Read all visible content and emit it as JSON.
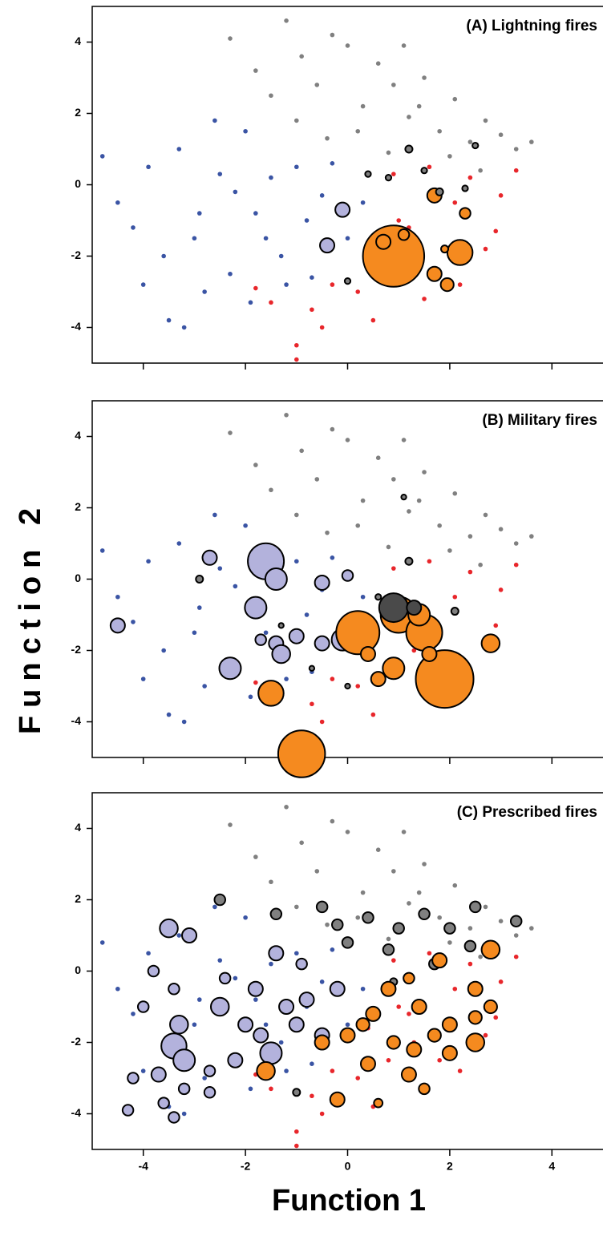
{
  "xlabel": "Function 1",
  "ylabel": "Function 2",
  "chart_data": [
    {
      "type": "scatter",
      "title": "(A) Lightning fires",
      "xlim": [
        -5,
        5
      ],
      "ylim": [
        -5,
        5
      ],
      "xticks": [
        -4,
        -2,
        0,
        2,
        4
      ],
      "yticks": [
        -4,
        -2,
        0,
        2,
        4
      ],
      "xticklabels": false,
      "series": [
        {
          "color": "#3a54a4",
          "x": [
            -4.8,
            -4.5,
            -4.2,
            -3.9,
            -3.6,
            -3.3,
            -3.0,
            -2.8,
            -2.5,
            -2.3,
            -2.0,
            -1.8,
            -1.5,
            -1.3,
            -1.0,
            -0.8,
            -0.5,
            -0.3,
            0.0,
            0.3,
            -3.5,
            -2.6,
            -1.9,
            -1.2,
            -0.7,
            -4.0,
            -2.2,
            -1.6,
            -3.2,
            -2.9
          ],
          "y": [
            0.8,
            -0.5,
            -1.2,
            0.5,
            -2.0,
            1.0,
            -1.5,
            -3.0,
            0.3,
            -2.5,
            1.5,
            -0.8,
            0.2,
            -2.0,
            0.5,
            -1.0,
            -0.3,
            0.6,
            -1.5,
            -0.5,
            -3.8,
            1.8,
            -3.3,
            -2.8,
            -2.6,
            -2.8,
            -0.2,
            -1.5,
            -4.0,
            -0.8
          ]
        },
        {
          "color": "#808080",
          "x": [
            -2.3,
            -1.8,
            -1.5,
            -1.2,
            -0.9,
            -0.6,
            -0.3,
            0.0,
            0.3,
            0.6,
            0.9,
            1.2,
            1.5,
            1.8,
            2.1,
            2.4,
            2.7,
            3.0,
            3.3,
            3.6,
            -1.0,
            0.2,
            0.8,
            1.4,
            2.0,
            2.6,
            -0.4,
            1.1
          ],
          "y": [
            4.1,
            3.2,
            2.5,
            4.6,
            3.6,
            2.8,
            4.2,
            3.9,
            2.2,
            3.4,
            2.8,
            1.9,
            3.0,
            1.5,
            2.4,
            1.2,
            1.8,
            1.4,
            1.0,
            1.2,
            1.8,
            1.5,
            0.9,
            2.2,
            0.8,
            0.4,
            1.3,
            3.9
          ]
        },
        {
          "color": "#e8262b",
          "x": [
            -1.8,
            -1.5,
            -1.0,
            -1.0,
            -0.7,
            -0.3,
            0.2,
            0.5,
            0.8,
            1.2,
            1.5,
            1.8,
            2.1,
            2.4,
            2.7,
            3.0,
            3.3,
            1.0,
            1.6,
            2.2,
            0.4,
            1.3,
            2.9,
            -0.5,
            0.9
          ],
          "y": [
            -2.9,
            -3.3,
            -4.5,
            -4.9,
            -3.5,
            -2.8,
            -3.0,
            -3.8,
            -2.5,
            -1.2,
            -3.2,
            -2.5,
            -0.5,
            0.2,
            -1.8,
            -0.3,
            0.4,
            -1.0,
            0.5,
            -2.8,
            -1.6,
            -2.0,
            -1.3,
            -4.0,
            0.3
          ]
        },
        {
          "color": "#b3b2dc",
          "edgecolor": "#000000",
          "x": [
            -0.1,
            -0.4
          ],
          "y": [
            -0.7,
            -1.7
          ],
          "sizes": [
            2,
            2
          ]
        },
        {
          "color": "#f58a1f",
          "edgecolor": "#000000",
          "x": [
            0.9,
            0.7,
            1.1,
            1.7,
            2.2,
            1.7,
            1.95,
            2.3,
            1.9
          ],
          "y": [
            -2.0,
            -1.6,
            -1.4,
            -0.3,
            -1.9,
            -2.5,
            -2.8,
            -0.8,
            -1.8
          ],
          "sizes": [
            8.5,
            2,
            1.5,
            2,
            3.5,
            2,
            1.8,
            1.5,
            1
          ]
        },
        {
          "color": "#808080",
          "edgecolor": "#000000",
          "x": [
            1.2,
            1.8,
            2.5,
            0.8,
            1.5,
            2.3,
            0.0,
            0.4
          ],
          "y": [
            1.0,
            -0.2,
            1.1,
            0.2,
            0.4,
            -0.1,
            -2.7,
            0.3
          ],
          "sizes": [
            1,
            1,
            0.8,
            0.8,
            0.8,
            0.8,
            0.8,
            0.8
          ]
        }
      ]
    },
    {
      "type": "scatter",
      "title": "(B) Military fires",
      "xlim": [
        -5,
        5
      ],
      "ylim": [
        -5,
        5
      ],
      "xticks": [
        -4,
        -2,
        0,
        2,
        4
      ],
      "yticks": [
        -4,
        -2,
        0,
        2,
        4
      ],
      "xticklabels": false,
      "series": [
        {
          "color": "#3a54a4",
          "x": [
            -4.8,
            -4.5,
            -4.2,
            -3.9,
            -3.6,
            -3.3,
            -3.0,
            -2.8,
            -2.5,
            -2.3,
            -2.0,
            -1.8,
            -1.5,
            -1.3,
            -1.0,
            -0.8,
            -0.5,
            -0.3,
            0.0,
            0.3,
            -3.5,
            -2.6,
            -1.9,
            -1.2,
            -0.7,
            -4.0,
            -2.2,
            -1.6,
            -3.2,
            -2.9
          ],
          "y": [
            0.8,
            -0.5,
            -1.2,
            0.5,
            -2.0,
            1.0,
            -1.5,
            -3.0,
            0.3,
            -2.5,
            1.5,
            -0.8,
            0.2,
            -2.0,
            0.5,
            -1.0,
            -0.3,
            0.6,
            -1.5,
            -0.5,
            -3.8,
            1.8,
            -3.3,
            -2.8,
            -2.6,
            -2.8,
            -0.2,
            -1.5,
            -4.0,
            -0.8
          ]
        },
        {
          "color": "#808080",
          "x": [
            -2.3,
            -1.8,
            -1.5,
            -1.2,
            -0.9,
            -0.6,
            -0.3,
            0.0,
            0.3,
            0.6,
            0.9,
            1.2,
            1.5,
            1.8,
            2.1,
            2.4,
            2.7,
            3.0,
            3.3,
            3.6,
            -1.0,
            0.2,
            0.8,
            1.4,
            2.0,
            2.6,
            -0.4,
            1.1
          ],
          "y": [
            4.1,
            3.2,
            2.5,
            4.6,
            3.6,
            2.8,
            4.2,
            3.9,
            2.2,
            3.4,
            2.8,
            1.9,
            3.0,
            1.5,
            2.4,
            1.2,
            1.8,
            1.4,
            1.0,
            1.2,
            1.8,
            1.5,
            0.9,
            2.2,
            0.8,
            0.4,
            1.3,
            3.9
          ]
        },
        {
          "color": "#e8262b",
          "x": [
            -1.8,
            -1.5,
            -1.0,
            -1.0,
            -0.7,
            -0.3,
            0.2,
            0.5,
            0.8,
            1.2,
            1.5,
            1.8,
            2.1,
            2.4,
            2.7,
            3.0,
            3.3,
            1.0,
            1.6,
            2.2,
            0.4,
            1.3,
            2.9,
            -0.5,
            0.9
          ],
          "y": [
            -2.9,
            -3.3,
            -4.5,
            -4.9,
            -3.5,
            -2.8,
            -3.0,
            -3.8,
            -2.5,
            -1.2,
            -3.2,
            -2.5,
            -0.5,
            0.2,
            -1.8,
            -0.3,
            0.4,
            -1.0,
            0.5,
            -2.8,
            -1.6,
            -2.0,
            -1.3,
            -4.0,
            0.3
          ]
        },
        {
          "color": "#b3b2dc",
          "edgecolor": "#000000",
          "x": [
            -1.6,
            -1.4,
            -2.7,
            -0.5,
            0.0,
            -1.8,
            -1.0,
            -1.4,
            -0.5,
            -0.1,
            -2.3,
            -4.5,
            -1.3,
            -1.7
          ],
          "y": [
            0.5,
            0.0,
            0.6,
            -0.1,
            0.1,
            -0.8,
            -1.6,
            -1.8,
            -1.8,
            -1.7,
            -2.5,
            -1.3,
            -2.1,
            -1.7
          ],
          "sizes": [
            5,
            3,
            2,
            2,
            1.5,
            3,
            2,
            2,
            2,
            3,
            3,
            2,
            2.5,
            1.5
          ]
        },
        {
          "color": "#f58a1f",
          "edgecolor": "#000000",
          "x": [
            -0.9,
            -1.5,
            1.9,
            0.2,
            1.0,
            1.5,
            0.9,
            1.6,
            0.4,
            2.8,
            1.4,
            0.6
          ],
          "y": [
            -4.9,
            -3.2,
            -2.8,
            -1.5,
            -1.0,
            -1.5,
            -2.5,
            -2.1,
            -2.1,
            -1.8,
            -1.0,
            -2.8
          ],
          "sizes": [
            6.5,
            3.5,
            8,
            6,
            5,
            5,
            3,
            2,
            2,
            2.5,
            3,
            2
          ]
        },
        {
          "color": "#4a4a4a",
          "edgecolor": "#000000",
          "x": [
            0.9,
            1.3
          ],
          "y": [
            -0.8,
            -0.8
          ],
          "sizes": [
            4,
            2
          ]
        },
        {
          "color": "#808080",
          "edgecolor": "#000000",
          "x": [
            1.2,
            -2.9,
            -0.7,
            -1.3,
            1.1,
            2.1,
            0.0,
            0.6
          ],
          "y": [
            0.5,
            0.0,
            -2.5,
            -1.3,
            2.3,
            -0.9,
            -3.0,
            -0.5
          ],
          "sizes": [
            1,
            1,
            0.7,
            0.7,
            0.7,
            1,
            0.7,
            0.8
          ]
        }
      ]
    },
    {
      "type": "scatter",
      "title": "(C) Prescribed fires",
      "xlim": [
        -5,
        5
      ],
      "ylim": [
        -5,
        5
      ],
      "xticks": [
        -4,
        -2,
        0,
        2,
        4
      ],
      "yticks": [
        -4,
        -2,
        0,
        2,
        4
      ],
      "xticklabels": true,
      "series": [
        {
          "color": "#3a54a4",
          "x": [
            -4.8,
            -4.5,
            -4.2,
            -3.9,
            -3.6,
            -3.3,
            -3.0,
            -2.8,
            -2.5,
            -2.3,
            -2.0,
            -1.8,
            -1.5,
            -1.3,
            -1.0,
            -0.8,
            -0.5,
            -0.3,
            0.0,
            0.3,
            -3.5,
            -2.6,
            -1.9,
            -1.2,
            -0.7,
            -4.0,
            -2.2,
            -1.6,
            -3.2,
            -2.9
          ],
          "y": [
            0.8,
            -0.5,
            -1.2,
            0.5,
            -2.0,
            1.0,
            -1.5,
            -3.0,
            0.3,
            -2.5,
            1.5,
            -0.8,
            0.2,
            -2.0,
            0.5,
            -1.0,
            -0.3,
            0.6,
            -1.5,
            -0.5,
            -3.8,
            1.8,
            -3.3,
            -2.8,
            -2.6,
            -2.8,
            -0.2,
            -1.5,
            -4.0,
            -0.8
          ]
        },
        {
          "color": "#808080",
          "x": [
            -2.3,
            -1.8,
            -1.5,
            -1.2,
            -0.9,
            -0.6,
            -0.3,
            0.0,
            0.3,
            0.6,
            0.9,
            1.2,
            1.5,
            1.8,
            2.1,
            2.4,
            2.7,
            3.0,
            3.3,
            3.6,
            -1.0,
            0.2,
            0.8,
            1.4,
            2.0,
            2.6,
            -0.4,
            1.1
          ],
          "y": [
            4.1,
            3.2,
            2.5,
            4.6,
            3.6,
            2.8,
            4.2,
            3.9,
            2.2,
            3.4,
            2.8,
            1.9,
            3.0,
            1.5,
            2.4,
            1.2,
            1.8,
            1.4,
            1.0,
            1.2,
            1.8,
            1.5,
            0.9,
            2.2,
            0.8,
            0.4,
            1.3,
            3.9
          ]
        },
        {
          "color": "#e8262b",
          "x": [
            -1.8,
            -1.5,
            -1.0,
            -1.0,
            -0.7,
            -0.3,
            0.2,
            0.5,
            0.8,
            1.2,
            1.5,
            1.8,
            2.1,
            2.4,
            2.7,
            3.0,
            3.3,
            1.0,
            1.6,
            2.2,
            0.4,
            1.3,
            2.9,
            -0.5,
            0.9
          ],
          "y": [
            -2.9,
            -3.3,
            -4.5,
            -4.9,
            -3.5,
            -2.8,
            -3.0,
            -3.8,
            -2.5,
            -1.2,
            -3.2,
            -2.5,
            -0.5,
            0.2,
            -1.8,
            -0.3,
            0.4,
            -1.0,
            0.5,
            -2.8,
            -1.6,
            -2.0,
            -1.3,
            -4.0,
            0.3
          ]
        },
        {
          "color": "#808080",
          "edgecolor": "#000000",
          "x": [
            -2.5,
            -1.4,
            -0.5,
            0.4,
            1.0,
            1.5,
            2.0,
            2.5,
            3.3,
            0.0,
            1.7,
            0.8,
            -0.2,
            2.4,
            -1.0,
            0.9
          ],
          "y": [
            2.0,
            1.6,
            1.8,
            1.5,
            1.2,
            1.6,
            1.2,
            1.8,
            1.4,
            0.8,
            0.2,
            0.6,
            1.3,
            0.7,
            -3.4,
            -0.3
          ],
          "sizes": [
            1.5,
            1.5,
            1.5,
            1.5,
            1.5,
            1.5,
            1.5,
            1.5,
            1.5,
            1.5,
            1.5,
            1.5,
            1.5,
            1.5,
            1,
            1
          ]
        },
        {
          "color": "#b3b2dc",
          "edgecolor": "#000000",
          "x": [
            -3.5,
            -3.1,
            -3.8,
            -3.4,
            -4.0,
            -3.3,
            -3.4,
            -3.2,
            -3.7,
            -4.2,
            -4.3,
            -3.6,
            -3.2,
            -2.7,
            -3.4,
            -2.5,
            -2.2,
            -2.0,
            -1.8,
            -1.5,
            -1.4,
            -1.0,
            -0.8,
            -0.5,
            -0.2,
            -1.2,
            -2.7,
            -1.7,
            -0.9,
            -2.4
          ],
          "y": [
            1.2,
            1.0,
            0.0,
            -0.5,
            -1.0,
            -1.5,
            -2.1,
            -2.5,
            -2.9,
            -3.0,
            -3.9,
            -3.7,
            -3.3,
            -3.4,
            -4.1,
            -1.0,
            -2.5,
            -1.5,
            -0.5,
            -2.3,
            0.5,
            -1.5,
            -0.8,
            -1.8,
            -0.5,
            -1.0,
            -2.8,
            -1.8,
            0.2,
            -0.2
          ],
          "sizes": [
            2.5,
            2,
            1.5,
            1.5,
            1.5,
            2.5,
            3.5,
            3,
            2,
            1.5,
            1.5,
            1.5,
            1.5,
            1.5,
            1.5,
            2.5,
            2,
            2,
            2,
            3,
            2,
            2,
            2,
            2,
            2,
            2,
            1.5,
            2,
            1.5,
            1.5
          ]
        },
        {
          "color": "#f58a1f",
          "edgecolor": "#000000",
          "x": [
            2.8,
            1.8,
            2.5,
            1.4,
            2.0,
            2.5,
            0.8,
            0.5,
            0.0,
            -0.5,
            -1.6,
            0.4,
            -0.2,
            1.2,
            1.3,
            2.0,
            2.5,
            1.7,
            0.9,
            0.3,
            1.2,
            2.8,
            1.5,
            0.6
          ],
          "y": [
            0.6,
            0.3,
            -0.5,
            -1.0,
            -1.5,
            -2.0,
            -0.5,
            -1.2,
            -1.8,
            -2.0,
            -2.8,
            -2.6,
            -3.6,
            -2.9,
            -2.2,
            -2.3,
            -1.3,
            -1.8,
            -2.0,
            -1.5,
            -0.2,
            -1.0,
            -3.3,
            -3.7
          ],
          "sizes": [
            2.5,
            2,
            2,
            2,
            2,
            2.5,
            2,
            2,
            2,
            2,
            2.5,
            2,
            2,
            2,
            2,
            2,
            1.8,
            1.8,
            1.8,
            1.8,
            1.5,
            1.8,
            1.5,
            1.2
          ]
        }
      ]
    }
  ]
}
